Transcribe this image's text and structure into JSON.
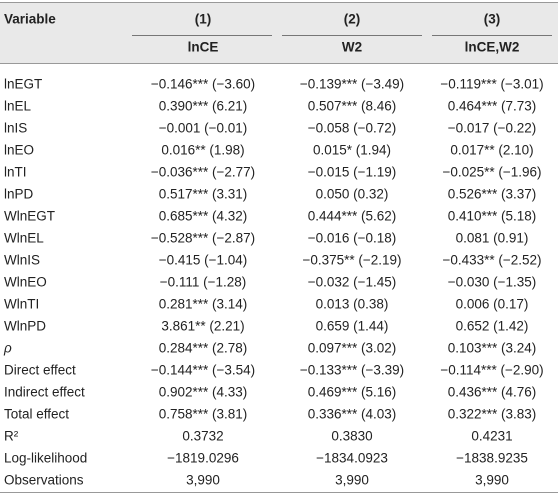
{
  "table": {
    "header": [
      "Variable",
      "(1)",
      "(2)",
      "(3)"
    ],
    "subheader": [
      "lnCE",
      "W2",
      "lnCE,W2"
    ],
    "rows": [
      [
        "lnEGT",
        "−0.146*** (−3.60)",
        "−0.139*** (−3.49)",
        "−0.119*** (−3.01)"
      ],
      [
        "lnEL",
        "0.390*** (6.21)",
        "0.507*** (8.46)",
        "0.464*** (7.73)"
      ],
      [
        "lnIS",
        "−0.001 (−0.01)",
        "−0.058 (−0.72)",
        "−0.017 (−0.22)"
      ],
      [
        "lnEO",
        "0.016** (1.98)",
        "0.015* (1.94)",
        "0.017** (2.10)"
      ],
      [
        "lnTI",
        "−0.036*** (−2.77)",
        "−0.015 (−1.19)",
        "−0.025** (−1.96)"
      ],
      [
        "lnPD",
        "0.517*** (3.31)",
        "0.050 (0.32)",
        "0.526*** (3.37)"
      ],
      [
        "WlnEGT",
        "0.685*** (4.32)",
        "0.444*** (5.62)",
        "0.410*** (5.18)"
      ],
      [
        "WlnEL",
        "−0.528*** (−2.87)",
        "−0.016 (−0.18)",
        "0.081 (0.91)"
      ],
      [
        "WlnIS",
        "−0.415 (−1.04)",
        "−0.375** (−2.19)",
        "−0.433** (−2.52)"
      ],
      [
        "WlnEO",
        "−0.111 (−1.28)",
        "−0.032 (−1.45)",
        "−0.030 (−1.35)"
      ],
      [
        "WlnTI",
        "0.281*** (3.14)",
        "0.013 (0.38)",
        "0.006 (0.17)"
      ],
      [
        "WlnPD",
        "3.861** (2.21)",
        "0.659 (1.44)",
        "0.652 (1.42)"
      ],
      [
        "ρ",
        "0.284*** (2.78)",
        "0.097*** (3.02)",
        "0.103*** (3.24)"
      ],
      [
        "Direct effect",
        "−0.144*** (−3.54)",
        "−0.133*** (−3.39)",
        "−0.114*** (−2.90)"
      ],
      [
        "Indirect effect",
        "0.902*** (4.33)",
        "0.469*** (5.16)",
        "0.436*** (4.76)"
      ],
      [
        "Total effect",
        "0.758*** (3.81)",
        "0.336*** (4.03)",
        "0.322*** (3.83)"
      ],
      [
        "R²",
        "0.3732",
        "0.3830",
        "0.4231"
      ],
      [
        "Log-likelihood",
        "−1819.0296",
        "−1834.0923",
        "−1838.9235"
      ],
      [
        "Observations",
        "3,990",
        "3,990",
        "3,990"
      ]
    ]
  }
}
